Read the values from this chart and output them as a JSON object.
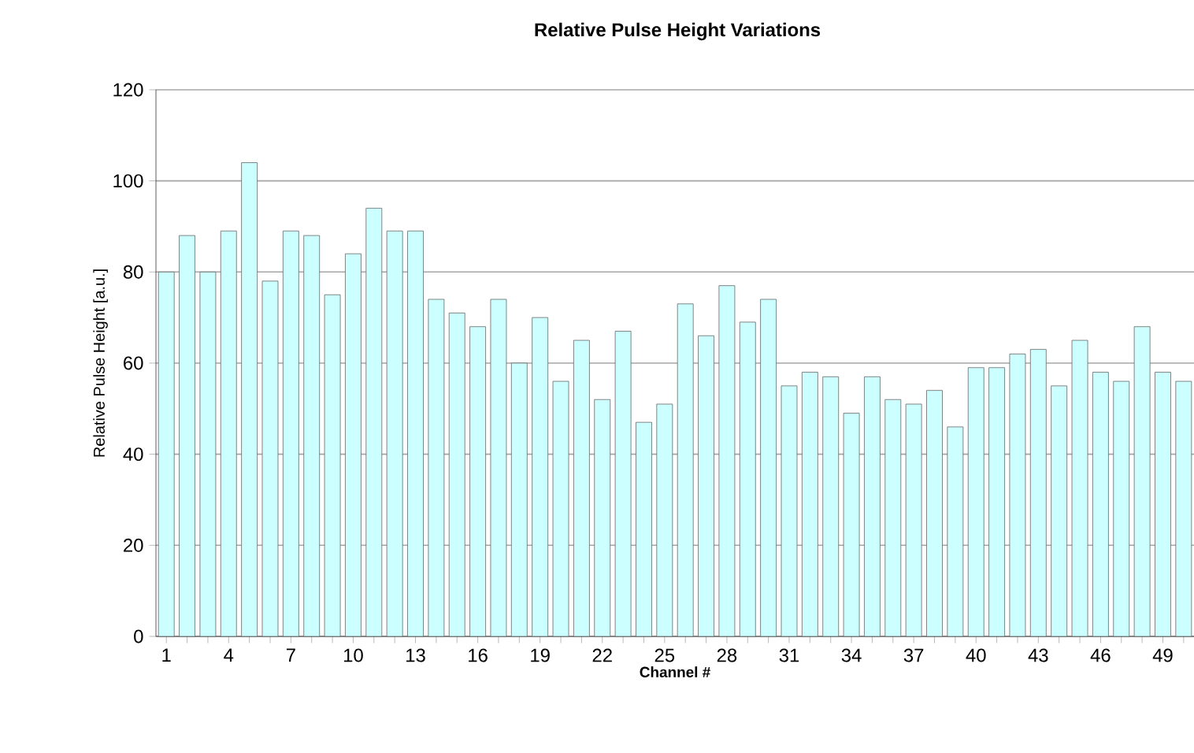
{
  "chart_data": {
    "type": "bar",
    "title": "Relative Pulse Height Variations",
    "xlabel": "Channel #",
    "ylabel": "Relative Pulse Height [a.u.]",
    "categories": [
      "1",
      null,
      null,
      "4",
      null,
      null,
      "7",
      null,
      null,
      "10",
      null,
      null,
      "13",
      null,
      null,
      "16",
      null,
      null,
      "19",
      null,
      null,
      "22",
      null,
      null,
      "25",
      null,
      null,
      "28",
      null,
      null,
      "31",
      null,
      null,
      "34",
      null,
      null,
      "37",
      null,
      null,
      "40",
      null,
      null,
      "43",
      null,
      null,
      "46",
      null,
      null,
      "49",
      null
    ],
    "values": [
      80,
      88,
      80,
      89,
      104,
      78,
      89,
      88,
      75,
      84,
      94,
      89,
      89,
      74,
      71,
      68,
      74,
      60,
      70,
      56,
      65,
      52,
      67,
      47,
      51,
      73,
      66,
      77,
      69,
      74,
      55,
      58,
      57,
      49,
      57,
      52,
      51,
      54,
      46,
      59,
      59,
      62,
      63,
      55,
      65,
      58,
      56,
      68,
      58,
      56
    ],
    "color": "#ccffff",
    "ylim": [
      0,
      120
    ],
    "yticks": [
      0,
      20,
      40,
      60,
      80,
      100,
      120
    ],
    "grid": "y"
  }
}
